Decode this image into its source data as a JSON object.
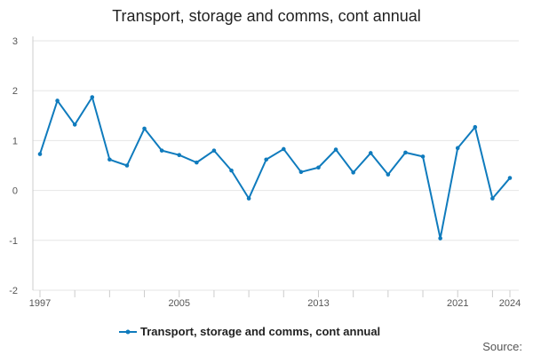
{
  "chart_data": {
    "type": "line",
    "title": "Transport, storage and comms, cont annual",
    "xlabel": "",
    "ylabel": "",
    "x": [
      1997,
      1998,
      1999,
      2000,
      2001,
      2002,
      2003,
      2004,
      2005,
      2006,
      2007,
      2008,
      2009,
      2010,
      2011,
      2012,
      2013,
      2014,
      2015,
      2016,
      2017,
      2018,
      2019,
      2020,
      2021,
      2022,
      2023,
      2024
    ],
    "series": [
      {
        "name": "Transport, storage and comms, cont annual",
        "color": "#0f7bbd",
        "values": [
          0.73,
          1.8,
          1.32,
          1.87,
          0.62,
          0.5,
          1.24,
          0.8,
          0.71,
          0.56,
          0.8,
          0.4,
          -0.16,
          0.62,
          0.83,
          0.37,
          0.46,
          0.82,
          0.36,
          0.75,
          0.32,
          0.76,
          0.68,
          -0.96,
          0.85,
          1.27,
          -0.16,
          0.25
        ]
      }
    ],
    "xlim": [
      1997,
      2024
    ],
    "ylim": [
      -2,
      3
    ],
    "y_ticks": [
      -2,
      -1,
      0,
      1,
      2,
      3
    ],
    "y_tick_labels": [
      "-2",
      "-1",
      "0",
      "1",
      "2",
      "3"
    ],
    "x_tick_labels": [
      {
        "value": 1997,
        "label": "1997"
      },
      {
        "value": 2005,
        "label": "2005"
      },
      {
        "value": 2013,
        "label": "2013"
      },
      {
        "value": 2021,
        "label": "2021"
      },
      {
        "value": 2024,
        "label": "2024"
      }
    ],
    "x_minor_ticks": [
      1997,
      1999,
      2001,
      2003,
      2005,
      2007,
      2009,
      2011,
      2013,
      2015,
      2017,
      2019,
      2021,
      2023,
      2024
    ],
    "grid": true,
    "legend_position": "bottom-center"
  },
  "footer": {
    "source_label": "Source:"
  }
}
